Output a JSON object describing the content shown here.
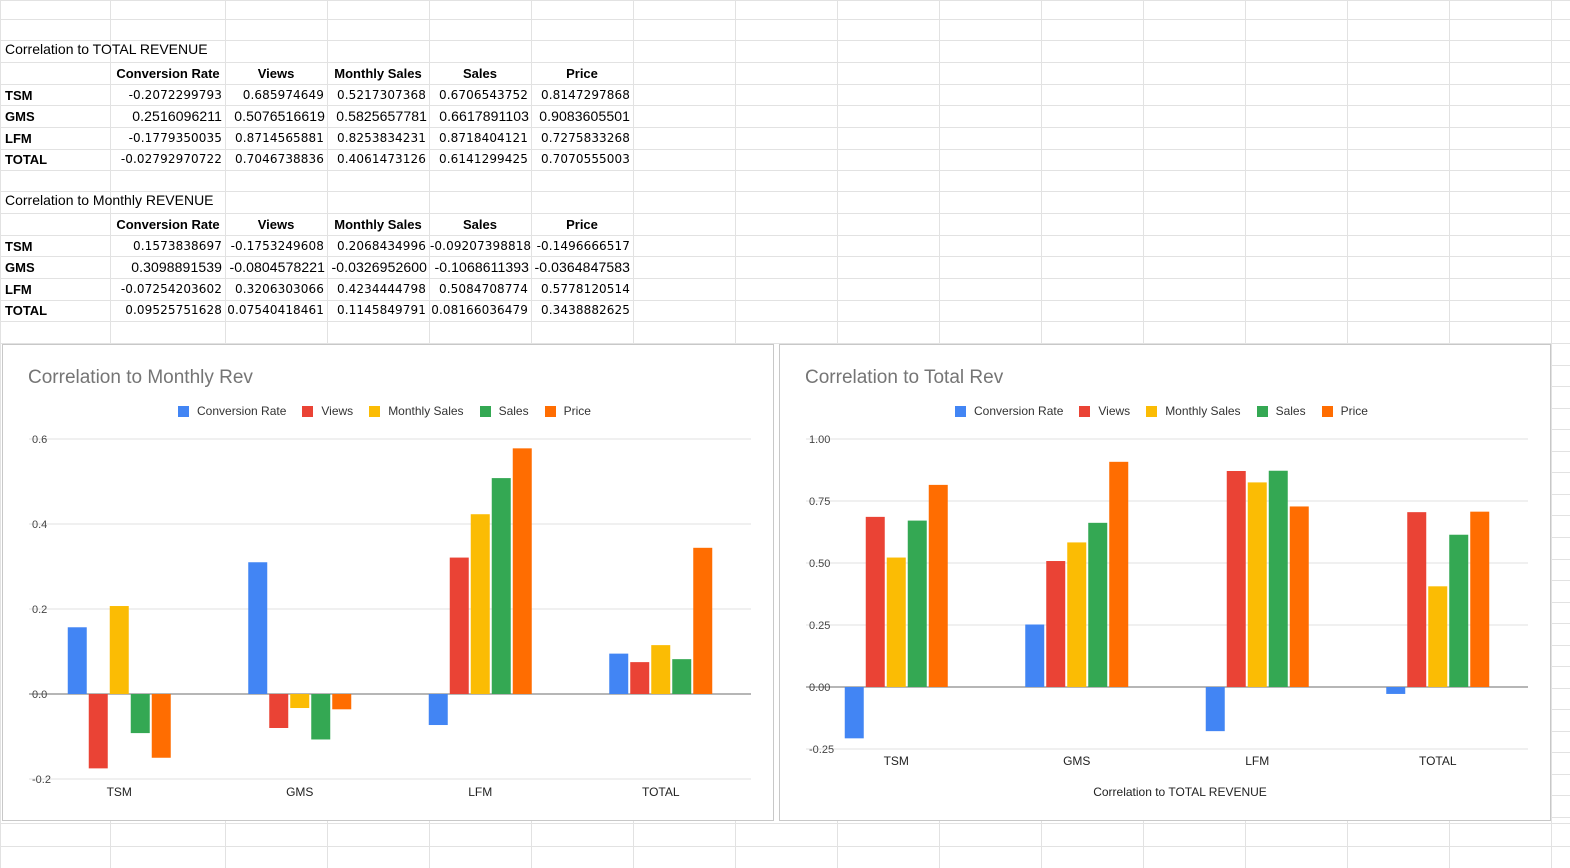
{
  "colors": {
    "conversion": "#4285F4",
    "views": "#EA4335",
    "monthly_sales": "#FBBC04",
    "sales": "#34A853",
    "price": "#FF6D01",
    "gridline": "#e2e2e2",
    "cell_border": "#e2e2e2"
  },
  "table_total": {
    "title": "Correlation to TOTAL REVENUE",
    "headers": [
      "Conversion Rate",
      "Views",
      "Monthly Sales",
      "Sales",
      "Price"
    ],
    "rows": [
      {
        "label": "TSM",
        "values": [
          "-0.2072299793",
          "0.685974649",
          "0.5217307368",
          "0.6706543752",
          "0.8147297868"
        ]
      },
      {
        "label": "GMS",
        "values": [
          "0.2516096211",
          "0.5076516619",
          "0.5825657781",
          "0.6617891103",
          "0.9083605501"
        ]
      },
      {
        "label": "LFM",
        "values": [
          "-0.1779350035",
          "0.8714565881",
          "0.8253834231",
          "0.8718404121",
          "0.7275833268"
        ]
      },
      {
        "label": "TOTAL",
        "values": [
          "-0.02792970722",
          "0.7046738836",
          "0.4061473126",
          "0.6141299425",
          "0.7070555003"
        ]
      }
    ]
  },
  "table_monthly": {
    "title": "Correlation to Monthly REVENUE",
    "headers": [
      "Conversion Rate",
      "Views",
      "Monthly Sales",
      "Sales",
      "Price"
    ],
    "rows": [
      {
        "label": "TSM",
        "values": [
          "0.1573838697",
          "-0.1753249608",
          "0.2068434996",
          "-0.09207398818",
          "-0.1496666517"
        ]
      },
      {
        "label": "GMS",
        "values": [
          "0.3098891539",
          "-0.0804578221",
          "-0.0326952600",
          "-0.1068611393",
          "-0.0364847583"
        ]
      },
      {
        "label": "LFM",
        "values": [
          "-0.07254203602",
          "0.3206303066",
          "0.4234444798",
          "0.5084708774",
          "0.5778120514"
        ]
      },
      {
        "label": "TOTAL",
        "values": [
          "0.09525751628",
          "0.07540418461",
          "0.1145849791",
          "0.08166036479",
          "0.3438882625"
        ]
      }
    ]
  },
  "chart_data": [
    {
      "type": "bar",
      "title": "Correlation to Monthly Rev",
      "xlabel": "",
      "ylabel": "",
      "categories": [
        "TSM",
        "GMS",
        "LFM",
        "TOTAL"
      ],
      "ylim": [
        -0.2,
        0.6
      ],
      "yticks": [
        "0.6",
        "0.4",
        "0.2",
        "0.0",
        "-0.2"
      ],
      "ytick_values": [
        0.6,
        0.4,
        0.2,
        0.0,
        -0.2
      ],
      "legend_position": "top",
      "grid": true,
      "series": [
        {
          "name": "Conversion Rate",
          "values": [
            0.157,
            0.31,
            -0.073,
            0.095
          ]
        },
        {
          "name": "Views",
          "values": [
            -0.175,
            -0.08,
            0.321,
            0.075
          ]
        },
        {
          "name": "Monthly Sales",
          "values": [
            0.207,
            -0.033,
            0.423,
            0.115
          ]
        },
        {
          "name": "Sales",
          "values": [
            -0.092,
            -0.107,
            0.508,
            0.082
          ]
        },
        {
          "name": "Price",
          "values": [
            -0.15,
            -0.036,
            0.578,
            0.344
          ]
        }
      ]
    },
    {
      "type": "bar",
      "title": "Correlation to Total Rev",
      "xlabel": "Correlation to TOTAL REVENUE",
      "ylabel": "",
      "categories": [
        "TSM",
        "GMS",
        "LFM",
        "TOTAL"
      ],
      "ylim": [
        -0.25,
        1.0
      ],
      "yticks": [
        "1.00",
        "0.75",
        "0.50",
        "0.25",
        "0.00",
        "-0.25"
      ],
      "ytick_values": [
        1.0,
        0.75,
        0.5,
        0.25,
        0.0,
        -0.25
      ],
      "legend_position": "top",
      "grid": true,
      "series": [
        {
          "name": "Conversion Rate",
          "values": [
            -0.207,
            0.252,
            -0.178,
            -0.028
          ]
        },
        {
          "name": "Views",
          "values": [
            0.686,
            0.508,
            0.871,
            0.705
          ]
        },
        {
          "name": "Monthly Sales",
          "values": [
            0.522,
            0.583,
            0.825,
            0.406
          ]
        },
        {
          "name": "Sales",
          "values": [
            0.671,
            0.662,
            0.872,
            0.614
          ]
        },
        {
          "name": "Price",
          "values": [
            0.815,
            0.908,
            0.728,
            0.707
          ]
        }
      ]
    }
  ]
}
